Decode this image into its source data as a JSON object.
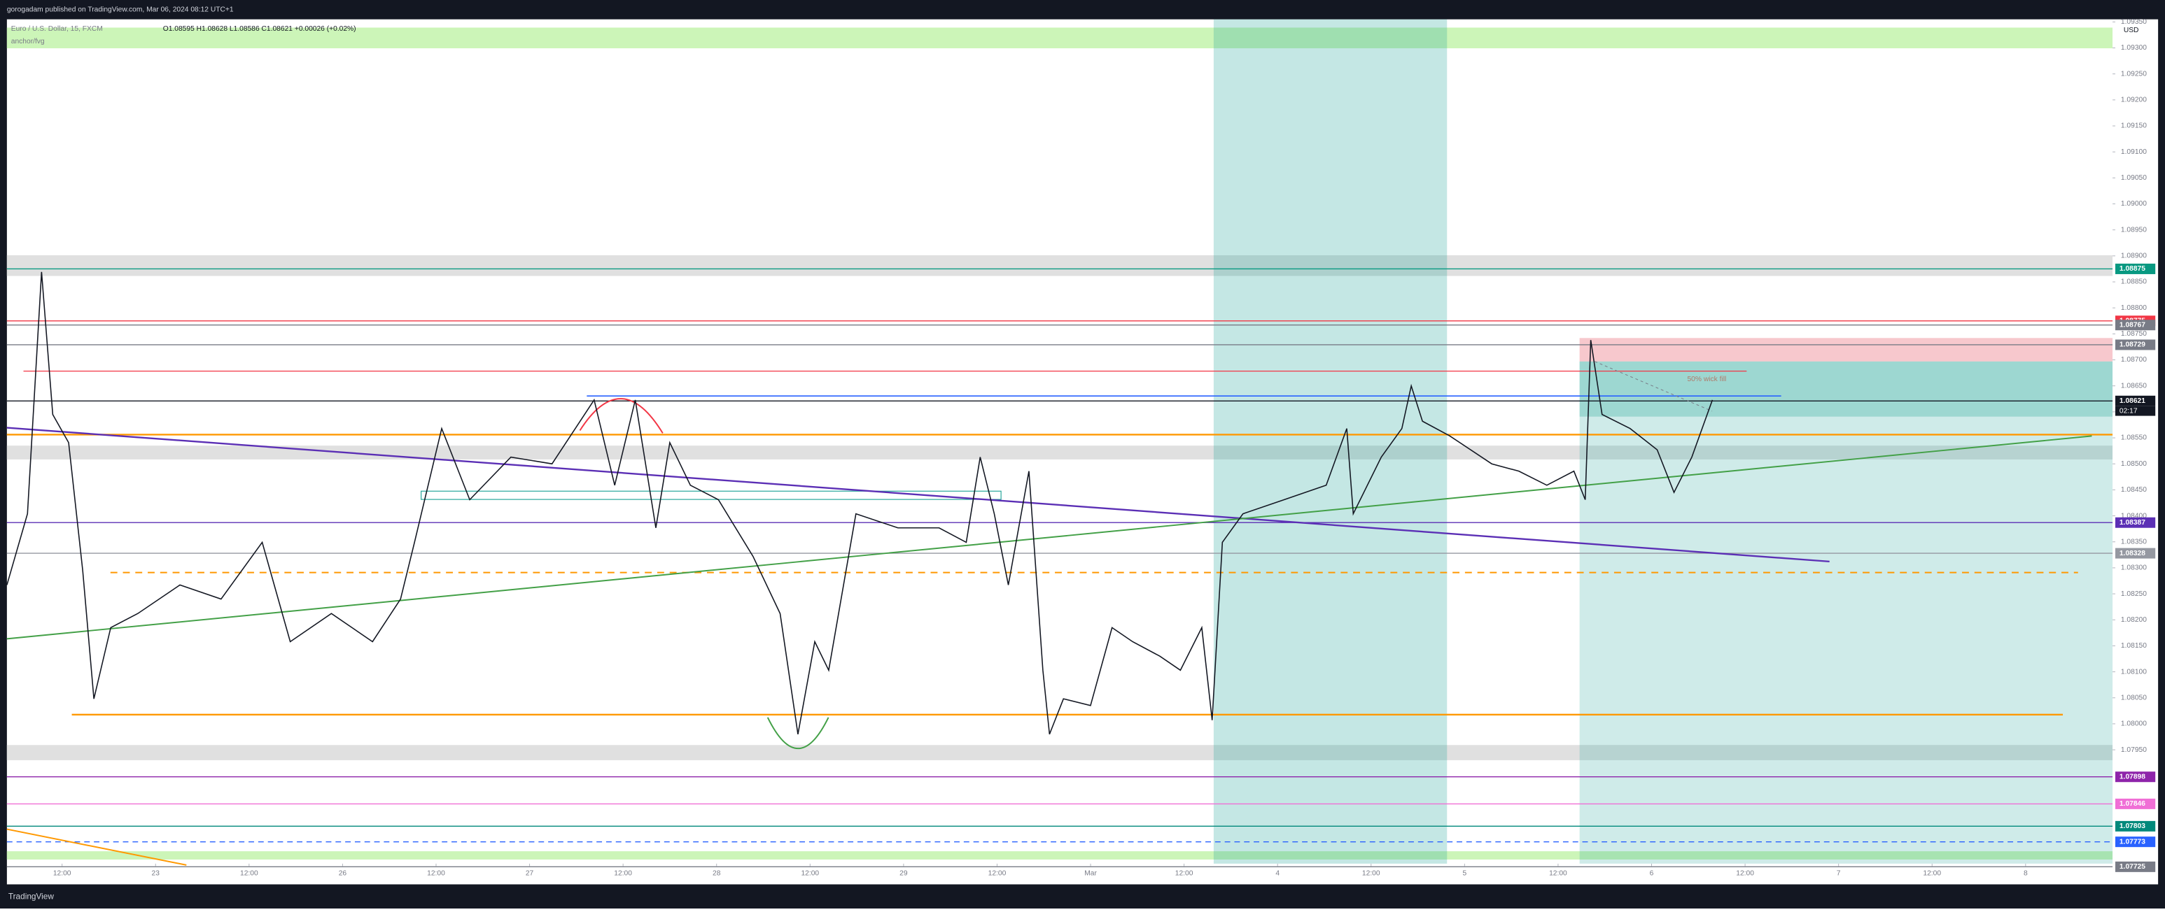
{
  "header": {
    "publisher": "gorogadam published on TradingView.com, Mar 06, 2024 08:12 UTC+1",
    "footer_brand": "TradingView"
  },
  "chart_data": {
    "type": "line",
    "legend_symbol": "Euro / U.S. Dollar, 15, FXCM",
    "legend_ohlc": "O1.08595 H1.08628 L1.08586 C1.08621 +0.00026 (+0.02%)",
    "legend_indicator": "anchor/fvg",
    "currency": "USD",
    "annotation": "50% wick fill",
    "countdown": "02:17",
    "color": "#131722",
    "x": [
      -0.59,
      -0.37,
      -0.22,
      -0.1,
      0.07,
      0.22,
      0.34,
      0.52,
      0.81,
      1.26,
      1.7,
      2.14,
      2.44,
      2.88,
      3.32,
      3.62,
      3.77,
      4.06,
      4.36,
      4.8,
      5.24,
      5.69,
      5.91,
      6.13,
      6.35,
      6.5,
      6.72,
      7.02,
      7.39,
      7.68,
      7.87,
      8.05,
      8.2,
      8.49,
      8.94,
      9.38,
      9.67,
      9.82,
      9.97,
      10.12,
      10.34,
      10.49,
      10.56,
      10.71,
      11.0,
      11.23,
      11.45,
      11.74,
      11.96,
      12.19,
      12.3,
      12.41,
      12.63,
      13.07,
      13.52,
      13.74,
      13.81,
      14.11,
      14.33,
      14.43,
      14.55,
      14.84,
      15.29,
      15.58,
      15.88,
      16.17,
      16.29,
      16.35,
      16.47,
      16.77,
      17.06,
      17.24,
      17.43,
      17.65
    ],
    "values": [
      1.08267,
      1.08404,
      1.08869,
      1.08595,
      1.08541,
      1.08295,
      1.08048,
      1.08185,
      1.08212,
      1.08267,
      1.0824,
      1.08349,
      1.08158,
      1.08212,
      1.08158,
      1.0824,
      1.08349,
      1.08568,
      1.08431,
      1.08513,
      1.085,
      1.08623,
      1.08459,
      1.08623,
      1.08377,
      1.08541,
      1.08459,
      1.08431,
      1.08322,
      1.08212,
      1.0798,
      1.08158,
      1.08103,
      1.08404,
      1.08377,
      1.08377,
      1.08349,
      1.08513,
      1.08404,
      1.08267,
      1.08486,
      1.08103,
      1.0798,
      1.08048,
      1.08035,
      1.08185,
      1.08158,
      1.0813,
      1.08103,
      1.08185,
      1.08007,
      1.08349,
      1.08404,
      1.08431,
      1.08459,
      1.08568,
      1.08404,
      1.08513,
      1.08568,
      1.0865,
      1.08582,
      1.08554,
      1.085,
      1.08486,
      1.08459,
      1.08486,
      1.08431,
      1.08738,
      1.08595,
      1.08568,
      1.08527,
      1.08445,
      1.08513,
      1.08623
    ],
    "xlim": [
      -0.59,
      21.93
    ],
    "xticks": [
      {
        "value": 0,
        "label": "12:00"
      },
      {
        "value": 1,
        "label": "23"
      },
      {
        "value": 2,
        "label": "12:00"
      },
      {
        "value": 3,
        "label": "26"
      },
      {
        "value": 4,
        "label": "12:00"
      },
      {
        "value": 5,
        "label": "27"
      },
      {
        "value": 6,
        "label": "12:00"
      },
      {
        "value": 7,
        "label": "28"
      },
      {
        "value": 8,
        "label": "12:00"
      },
      {
        "value": 9,
        "label": "29"
      },
      {
        "value": 10,
        "label": "12:00"
      },
      {
        "value": 11,
        "label": "Mar"
      },
      {
        "value": 12,
        "label": "12:00"
      },
      {
        "value": 13,
        "label": "4"
      },
      {
        "value": 14,
        "label": "12:00"
      },
      {
        "value": 15,
        "label": "5"
      },
      {
        "value": 16,
        "label": "12:00"
      },
      {
        "value": 17,
        "label": "6"
      },
      {
        "value": 18,
        "label": "12:00"
      },
      {
        "value": 19,
        "label": "7"
      },
      {
        "value": 20,
        "label": "12:00"
      },
      {
        "value": 21,
        "label": "8"
      }
    ],
    "ylim": [
      1.07731,
      1.09355
    ],
    "yticks": [
      {
        "value": 1.0795,
        "label": "1.07950"
      },
      {
        "value": 1.08,
        "label": "1.08000"
      },
      {
        "value": 1.0805,
        "label": "1.08050"
      },
      {
        "value": 1.081,
        "label": "1.08100"
      },
      {
        "value": 1.0815,
        "label": "1.08150"
      },
      {
        "value": 1.082,
        "label": "1.08200"
      },
      {
        "value": 1.0825,
        "label": "1.08250"
      },
      {
        "value": 1.083,
        "label": "1.08300"
      },
      {
        "value": 1.0835,
        "label": "1.08350"
      },
      {
        "value": 1.084,
        "label": "1.08400"
      },
      {
        "value": 1.0845,
        "label": "1.08450"
      },
      {
        "value": 1.085,
        "label": "1.08500"
      },
      {
        "value": 1.0855,
        "label": "1.08550"
      },
      {
        "value": 1.086,
        "label": "1.08600"
      },
      {
        "value": 1.0865,
        "label": "1.08650"
      },
      {
        "value": 1.087,
        "label": "1.08700"
      },
      {
        "value": 1.0875,
        "label": "1.08750"
      },
      {
        "value": 1.088,
        "label": "1.08800"
      },
      {
        "value": 1.0885,
        "label": "1.08850"
      },
      {
        "value": 1.089,
        "label": "1.08900"
      },
      {
        "value": 1.0895,
        "label": "1.08950"
      },
      {
        "value": 1.09,
        "label": "1.09000"
      },
      {
        "value": 1.0905,
        "label": "1.09050"
      },
      {
        "value": 1.091,
        "label": "1.09100"
      },
      {
        "value": 1.0915,
        "label": "1.09150"
      },
      {
        "value": 1.092,
        "label": "1.09200"
      },
      {
        "value": 1.0925,
        "label": "1.09250"
      },
      {
        "value": 1.093,
        "label": "1.09300"
      },
      {
        "value": 1.0935,
        "label": "1.09350"
      }
    ],
    "level_values": [
      1.08875,
      1.08775,
      1.08767,
      1.08729,
      1.08621,
      1.08387,
      1.08328,
      1.07898,
      1.07846,
      1.07803,
      1.07773,
      1.07725
    ],
    "level_colors": [
      "#089981",
      "#f23645",
      "#787b86",
      "#787b86",
      "#131722",
      "#5b2fb5",
      "#9598a1",
      "#8e24aa",
      "#f06fd6",
      "#00897b",
      "#2962ff",
      "#787b86"
    ]
  }
}
